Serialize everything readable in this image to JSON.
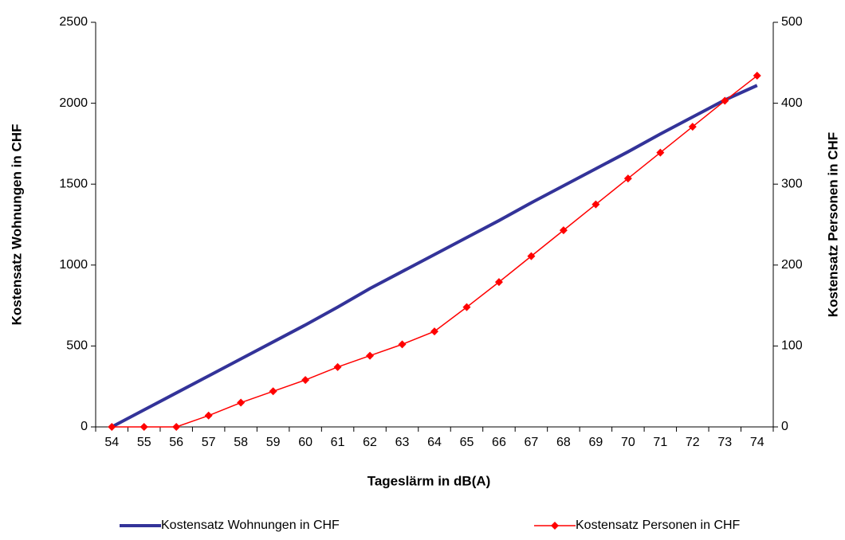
{
  "chart_data": {
    "type": "line",
    "x_label": "Tageslärm in dB(A)",
    "y_label": "Kostensatz Wohnungen in CHF",
    "y2_label": "Kostensatz Personen in CHF",
    "categories": [
      "54",
      "55",
      "56",
      "57",
      "58",
      "59",
      "60",
      "61",
      "62",
      "63",
      "64",
      "65",
      "66",
      "67",
      "68",
      "69",
      "70",
      "71",
      "72",
      "73",
      "74"
    ],
    "series": [
      {
        "name": "Kostensatz Wohnungen in CHF",
        "color": "#333399",
        "marker": "none",
        "values": [
          0,
          105,
          210,
          315,
          420,
          525,
          630,
          740,
          855,
          960,
          1065,
          1170,
          1275,
          1385,
          1490,
          1595,
          1700,
          1810,
          1915,
          2020,
          2110
        ]
      },
      {
        "name": "Kostensatz Personen in CHF",
        "color": "#ff0000",
        "marker": "diamond",
        "axis": "y2",
        "values": [
          0,
          0,
          0,
          14,
          30,
          44,
          58,
          74,
          88,
          102,
          118,
          148,
          179,
          211,
          243,
          275,
          307,
          339,
          371,
          403,
          434
        ]
      }
    ],
    "ylim": [
      0,
      2500
    ],
    "yticks": [
      0,
      500,
      1000,
      1500,
      2000,
      2500
    ],
    "y2lim": [
      0,
      500
    ],
    "y2ticks": [
      0,
      100,
      200,
      300,
      400,
      500
    ],
    "legend": "bottom"
  }
}
